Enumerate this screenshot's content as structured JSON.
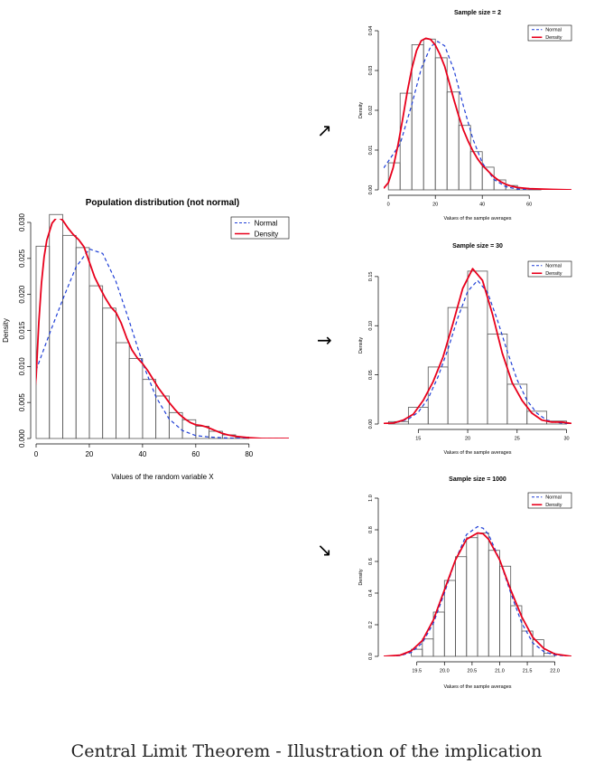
{
  "caption": "Central Limit Theorem - Illustration of the implication",
  "arrows": [
    "↗",
    "→",
    "↘"
  ],
  "colors": {
    "normal": "#1f3fd6",
    "density": "#e8001c",
    "bars": "#555555"
  },
  "chart_data": [
    {
      "id": "population",
      "type": "bar",
      "title": "Population distribution (not normal)",
      "xlabel": "Values of the random variable X",
      "ylabel": "Density",
      "xlim": [
        0,
        95
      ],
      "ylim": [
        0,
        0.03
      ],
      "xticks": [
        0,
        20,
        40,
        60,
        80
      ],
      "xtick_labels": [
        "0",
        "20",
        "40",
        "60",
        "80"
      ],
      "yticks": [
        0,
        0.005,
        0.01,
        0.015,
        0.02,
        0.025,
        0.03
      ],
      "ytick_labels": [
        "0.000",
        "0.005",
        "0.010",
        "0.015",
        "0.020",
        "0.025",
        "0.030"
      ],
      "bin_edges": [
        0,
        5,
        10,
        15,
        20,
        25,
        30,
        35,
        40,
        45,
        50,
        55,
        60,
        65,
        70,
        75,
        80
      ],
      "bar_heights": [
        0.0267,
        0.0311,
        0.0282,
        0.0265,
        0.0212,
        0.0181,
        0.0133,
        0.0111,
        0.0082,
        0.0059,
        0.0036,
        0.0026,
        0.0017,
        0.001,
        0.0005,
        0.0002
      ],
      "series": [
        {
          "name": "Normal",
          "style": "dashed",
          "x": [
            0,
            5,
            10,
            15,
            20,
            25,
            30,
            35,
            40,
            45,
            50,
            55,
            60,
            65,
            70,
            80,
            95
          ],
          "y": [
            0.0095,
            0.0145,
            0.0193,
            0.0238,
            0.0263,
            0.0257,
            0.0218,
            0.0163,
            0.0105,
            0.0058,
            0.0027,
            0.0011,
            0.0004,
            0.0002,
            0.0001,
            0.0,
            0.0
          ]
        },
        {
          "name": "Density",
          "style": "solid",
          "x": [
            -3,
            -1,
            0,
            1,
            2,
            3,
            4,
            6,
            8,
            10,
            12,
            14,
            16,
            18,
            20,
            22,
            24,
            26,
            28,
            30,
            32,
            34,
            36,
            38,
            40,
            42,
            44,
            46,
            48,
            50,
            52,
            54,
            56,
            58,
            60,
            62,
            64,
            66,
            68,
            70,
            72,
            75,
            80,
            85,
            95
          ],
          "y": [
            0.0015,
            0.0045,
            0.0085,
            0.016,
            0.0215,
            0.0252,
            0.0275,
            0.0299,
            0.0308,
            0.0303,
            0.0292,
            0.0283,
            0.0276,
            0.0266,
            0.0245,
            0.0224,
            0.0209,
            0.0195,
            0.0183,
            0.0175,
            0.016,
            0.014,
            0.0123,
            0.0112,
            0.0104,
            0.0094,
            0.0082,
            0.007,
            0.006,
            0.005,
            0.0041,
            0.0033,
            0.0027,
            0.0022,
            0.0019,
            0.0018,
            0.0016,
            0.0013,
            0.001,
            0.0007,
            0.0005,
            0.0003,
            0.0001,
            0.0,
            0.0
          ]
        }
      ],
      "legend": [
        "Normal",
        "Density"
      ],
      "legend_position": "top-right"
    },
    {
      "id": "n2",
      "type": "bar",
      "title": "Sample size = 2",
      "xlabel": "Values of the sample averages",
      "ylabel": "Density",
      "xlim": [
        -2,
        78
      ],
      "ylim": [
        0,
        0.04
      ],
      "xticks": [
        0,
        20,
        40,
        60
      ],
      "xtick_labels": [
        "0",
        "20",
        "40",
        "60"
      ],
      "yticks": [
        0,
        0.01,
        0.02,
        0.03,
        0.04
      ],
      "ytick_labels": [
        "0.00",
        "0.01",
        "0.02",
        "0.03",
        "0.04"
      ],
      "bin_edges": [
        0,
        5,
        10,
        15,
        20,
        25,
        30,
        35,
        40,
        45,
        50,
        55,
        60,
        65
      ],
      "bar_heights": [
        0.0068,
        0.0243,
        0.0365,
        0.0379,
        0.0332,
        0.0246,
        0.0162,
        0.0096,
        0.0057,
        0.0025,
        0.0011,
        0.0004,
        0.0001
      ],
      "series": [
        {
          "name": "Normal",
          "style": "dashed",
          "x": [
            -2,
            5,
            10,
            14,
            18,
            21,
            24,
            28,
            32,
            36,
            40,
            45,
            50,
            55,
            60,
            78
          ],
          "y": [
            0.0055,
            0.0115,
            0.0215,
            0.0305,
            0.036,
            0.0373,
            0.0362,
            0.03,
            0.021,
            0.0128,
            0.0068,
            0.0026,
            0.0008,
            0.0002,
            0.0001,
            0.0
          ]
        },
        {
          "name": "Density",
          "style": "solid",
          "x": [
            -2,
            0,
            2,
            4,
            6,
            8,
            10,
            12,
            14,
            16,
            18,
            20,
            22,
            24,
            26,
            28,
            30,
            32,
            34,
            36,
            38,
            40,
            42,
            44,
            46,
            48,
            50,
            52,
            55,
            60,
            70,
            78
          ],
          "y": [
            0.0004,
            0.0018,
            0.0055,
            0.011,
            0.0175,
            0.0245,
            0.0305,
            0.035,
            0.0375,
            0.0381,
            0.0378,
            0.0364,
            0.034,
            0.031,
            0.0268,
            0.0225,
            0.0185,
            0.015,
            0.0122,
            0.0098,
            0.0078,
            0.0062,
            0.005,
            0.0038,
            0.0028,
            0.002,
            0.0014,
            0.001,
            0.0006,
            0.0003,
            0.0001,
            0.0
          ]
        }
      ],
      "legend": [
        "Normal",
        "Density"
      ],
      "legend_position": "top-right"
    },
    {
      "id": "n30",
      "type": "bar",
      "title": "Sample size = 30",
      "xlabel": "Values of the sample averages",
      "ylabel": "Density",
      "xlim": [
        11.5,
        30.5
      ],
      "ylim": [
        0,
        0.16
      ],
      "xticks": [
        15,
        20,
        25,
        30
      ],
      "xtick_labels": [
        "15",
        "20",
        "25",
        "30"
      ],
      "yticks": [
        0,
        0.05,
        0.1,
        0.15
      ],
      "ytick_labels": [
        "0.00",
        "0.05",
        "0.10",
        "0.15"
      ],
      "bin_edges": [
        12,
        14,
        16,
        18,
        20,
        22,
        24,
        26,
        28,
        30
      ],
      "bar_heights": [
        0.0025,
        0.017,
        0.058,
        0.1185,
        0.1555,
        0.0915,
        0.0405,
        0.013,
        0.003
      ],
      "series": [
        {
          "name": "Normal",
          "style": "dashed",
          "x": [
            11.5,
            13,
            14,
            15,
            16,
            17,
            18,
            19,
            20,
            21,
            22,
            23,
            24,
            25,
            26,
            27,
            28,
            29,
            30.5
          ],
          "y": [
            0.0,
            0.002,
            0.005,
            0.012,
            0.026,
            0.048,
            0.076,
            0.108,
            0.135,
            0.146,
            0.134,
            0.106,
            0.074,
            0.045,
            0.024,
            0.011,
            0.004,
            0.0015,
            0.0
          ]
        },
        {
          "name": "Density",
          "style": "solid",
          "x": [
            11.5,
            12.5,
            13.5,
            14.5,
            15.5,
            16.5,
            17.5,
            18.5,
            19.5,
            20.5,
            21.5,
            22.5,
            23.5,
            24.5,
            25.5,
            26.5,
            27.5,
            28.5,
            29.5,
            30.5
          ],
          "y": [
            0.0005,
            0.001,
            0.004,
            0.01,
            0.024,
            0.043,
            0.068,
            0.102,
            0.138,
            0.158,
            0.146,
            0.112,
            0.072,
            0.042,
            0.024,
            0.011,
            0.004,
            0.002,
            0.002,
            0.0005
          ]
        }
      ],
      "legend": [
        "Normal",
        "Density"
      ],
      "legend_position": "top-right"
    },
    {
      "id": "n1000",
      "type": "bar",
      "title": "Sample size = 1000",
      "xlabel": "Values of the sample averages",
      "ylabel": "Density",
      "xlim": [
        18.9,
        22.3
      ],
      "ylim": [
        0,
        1.0
      ],
      "xticks": [
        19.5,
        20.0,
        20.5,
        21.0,
        21.5,
        22.0
      ],
      "xtick_labels": [
        "19.5",
        "20.0",
        "20.5",
        "21.0",
        "21.5",
        "22.0"
      ],
      "yticks": [
        0,
        0.2,
        0.4,
        0.6,
        0.8,
        1.0
      ],
      "ytick_labels": [
        "0.0",
        "0.2",
        "0.4",
        "0.6",
        "0.8",
        "1.0"
      ],
      "bin_edges": [
        19.4,
        19.6,
        19.8,
        20.0,
        20.2,
        20.4,
        20.6,
        20.8,
        21.0,
        21.2,
        21.4,
        21.6,
        21.8,
        22.0
      ],
      "bar_heights": [
        0.045,
        0.11,
        0.28,
        0.48,
        0.63,
        0.75,
        0.78,
        0.67,
        0.57,
        0.32,
        0.16,
        0.105,
        0.02
      ],
      "series": [
        {
          "name": "Normal",
          "style": "dashed",
          "x": [
            18.9,
            19.2,
            19.4,
            19.6,
            19.8,
            20.0,
            20.2,
            20.4,
            20.6,
            20.7,
            20.8,
            21.0,
            21.2,
            21.4,
            21.6,
            21.8,
            22.0,
            22.3
          ],
          "y": [
            0.0,
            0.005,
            0.025,
            0.085,
            0.21,
            0.4,
            0.61,
            0.77,
            0.82,
            0.81,
            0.77,
            0.61,
            0.4,
            0.21,
            0.085,
            0.03,
            0.008,
            0.0
          ]
        },
        {
          "name": "Density",
          "style": "solid",
          "x": [
            18.9,
            19.2,
            19.4,
            19.6,
            19.8,
            20.0,
            20.2,
            20.4,
            20.6,
            20.7,
            20.8,
            21.0,
            21.2,
            21.4,
            21.6,
            21.8,
            22.0,
            22.3
          ],
          "y": [
            0.0,
            0.008,
            0.035,
            0.1,
            0.23,
            0.42,
            0.61,
            0.74,
            0.78,
            0.775,
            0.74,
            0.61,
            0.42,
            0.25,
            0.12,
            0.05,
            0.015,
            0.0
          ]
        }
      ],
      "legend": [
        "Normal",
        "Density"
      ],
      "legend_position": "top-right"
    }
  ]
}
